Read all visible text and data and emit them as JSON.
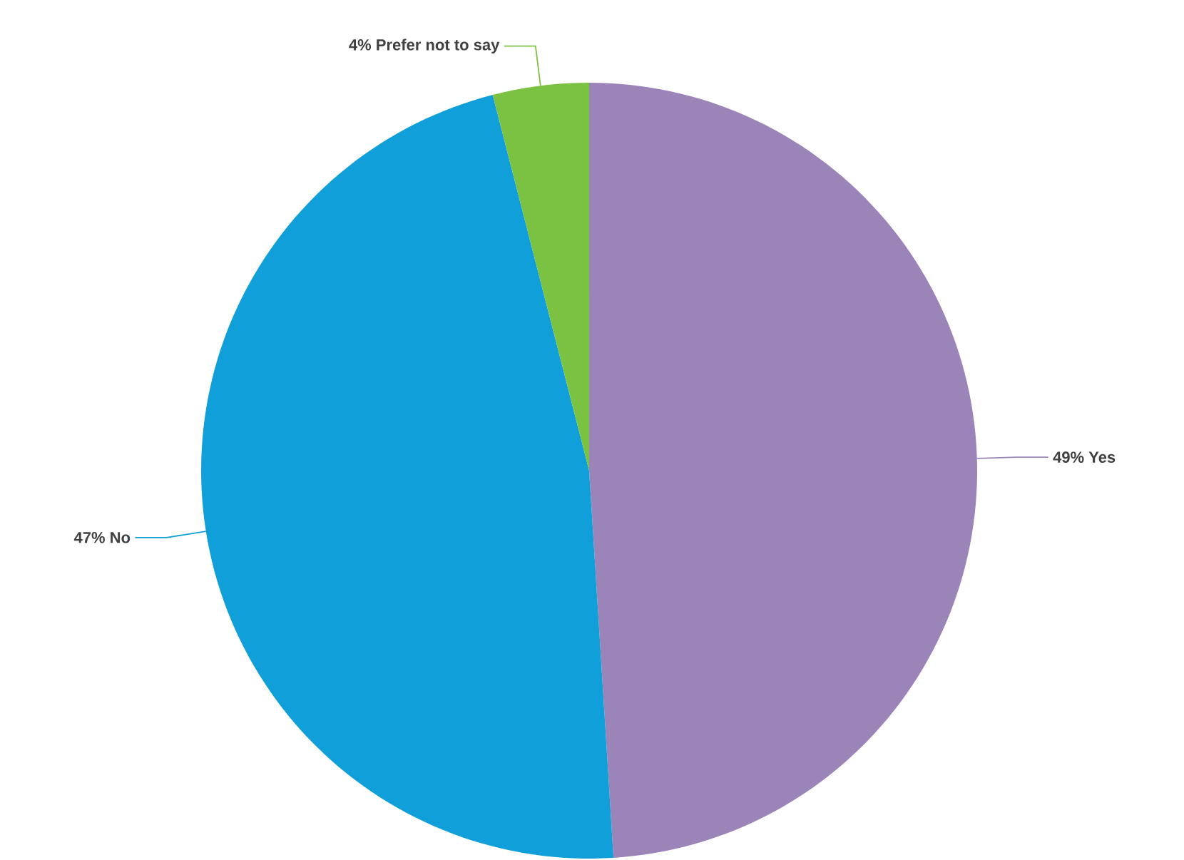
{
  "chart_data": {
    "type": "pie",
    "categories": [
      "Yes",
      "No",
      "Prefer not to say"
    ],
    "values": [
      49,
      47,
      4
    ],
    "colors": [
      "#9b84b8",
      "#109fd9",
      "#7cc242"
    ],
    "value_labels": [
      "49%",
      "47%",
      "4%"
    ]
  }
}
